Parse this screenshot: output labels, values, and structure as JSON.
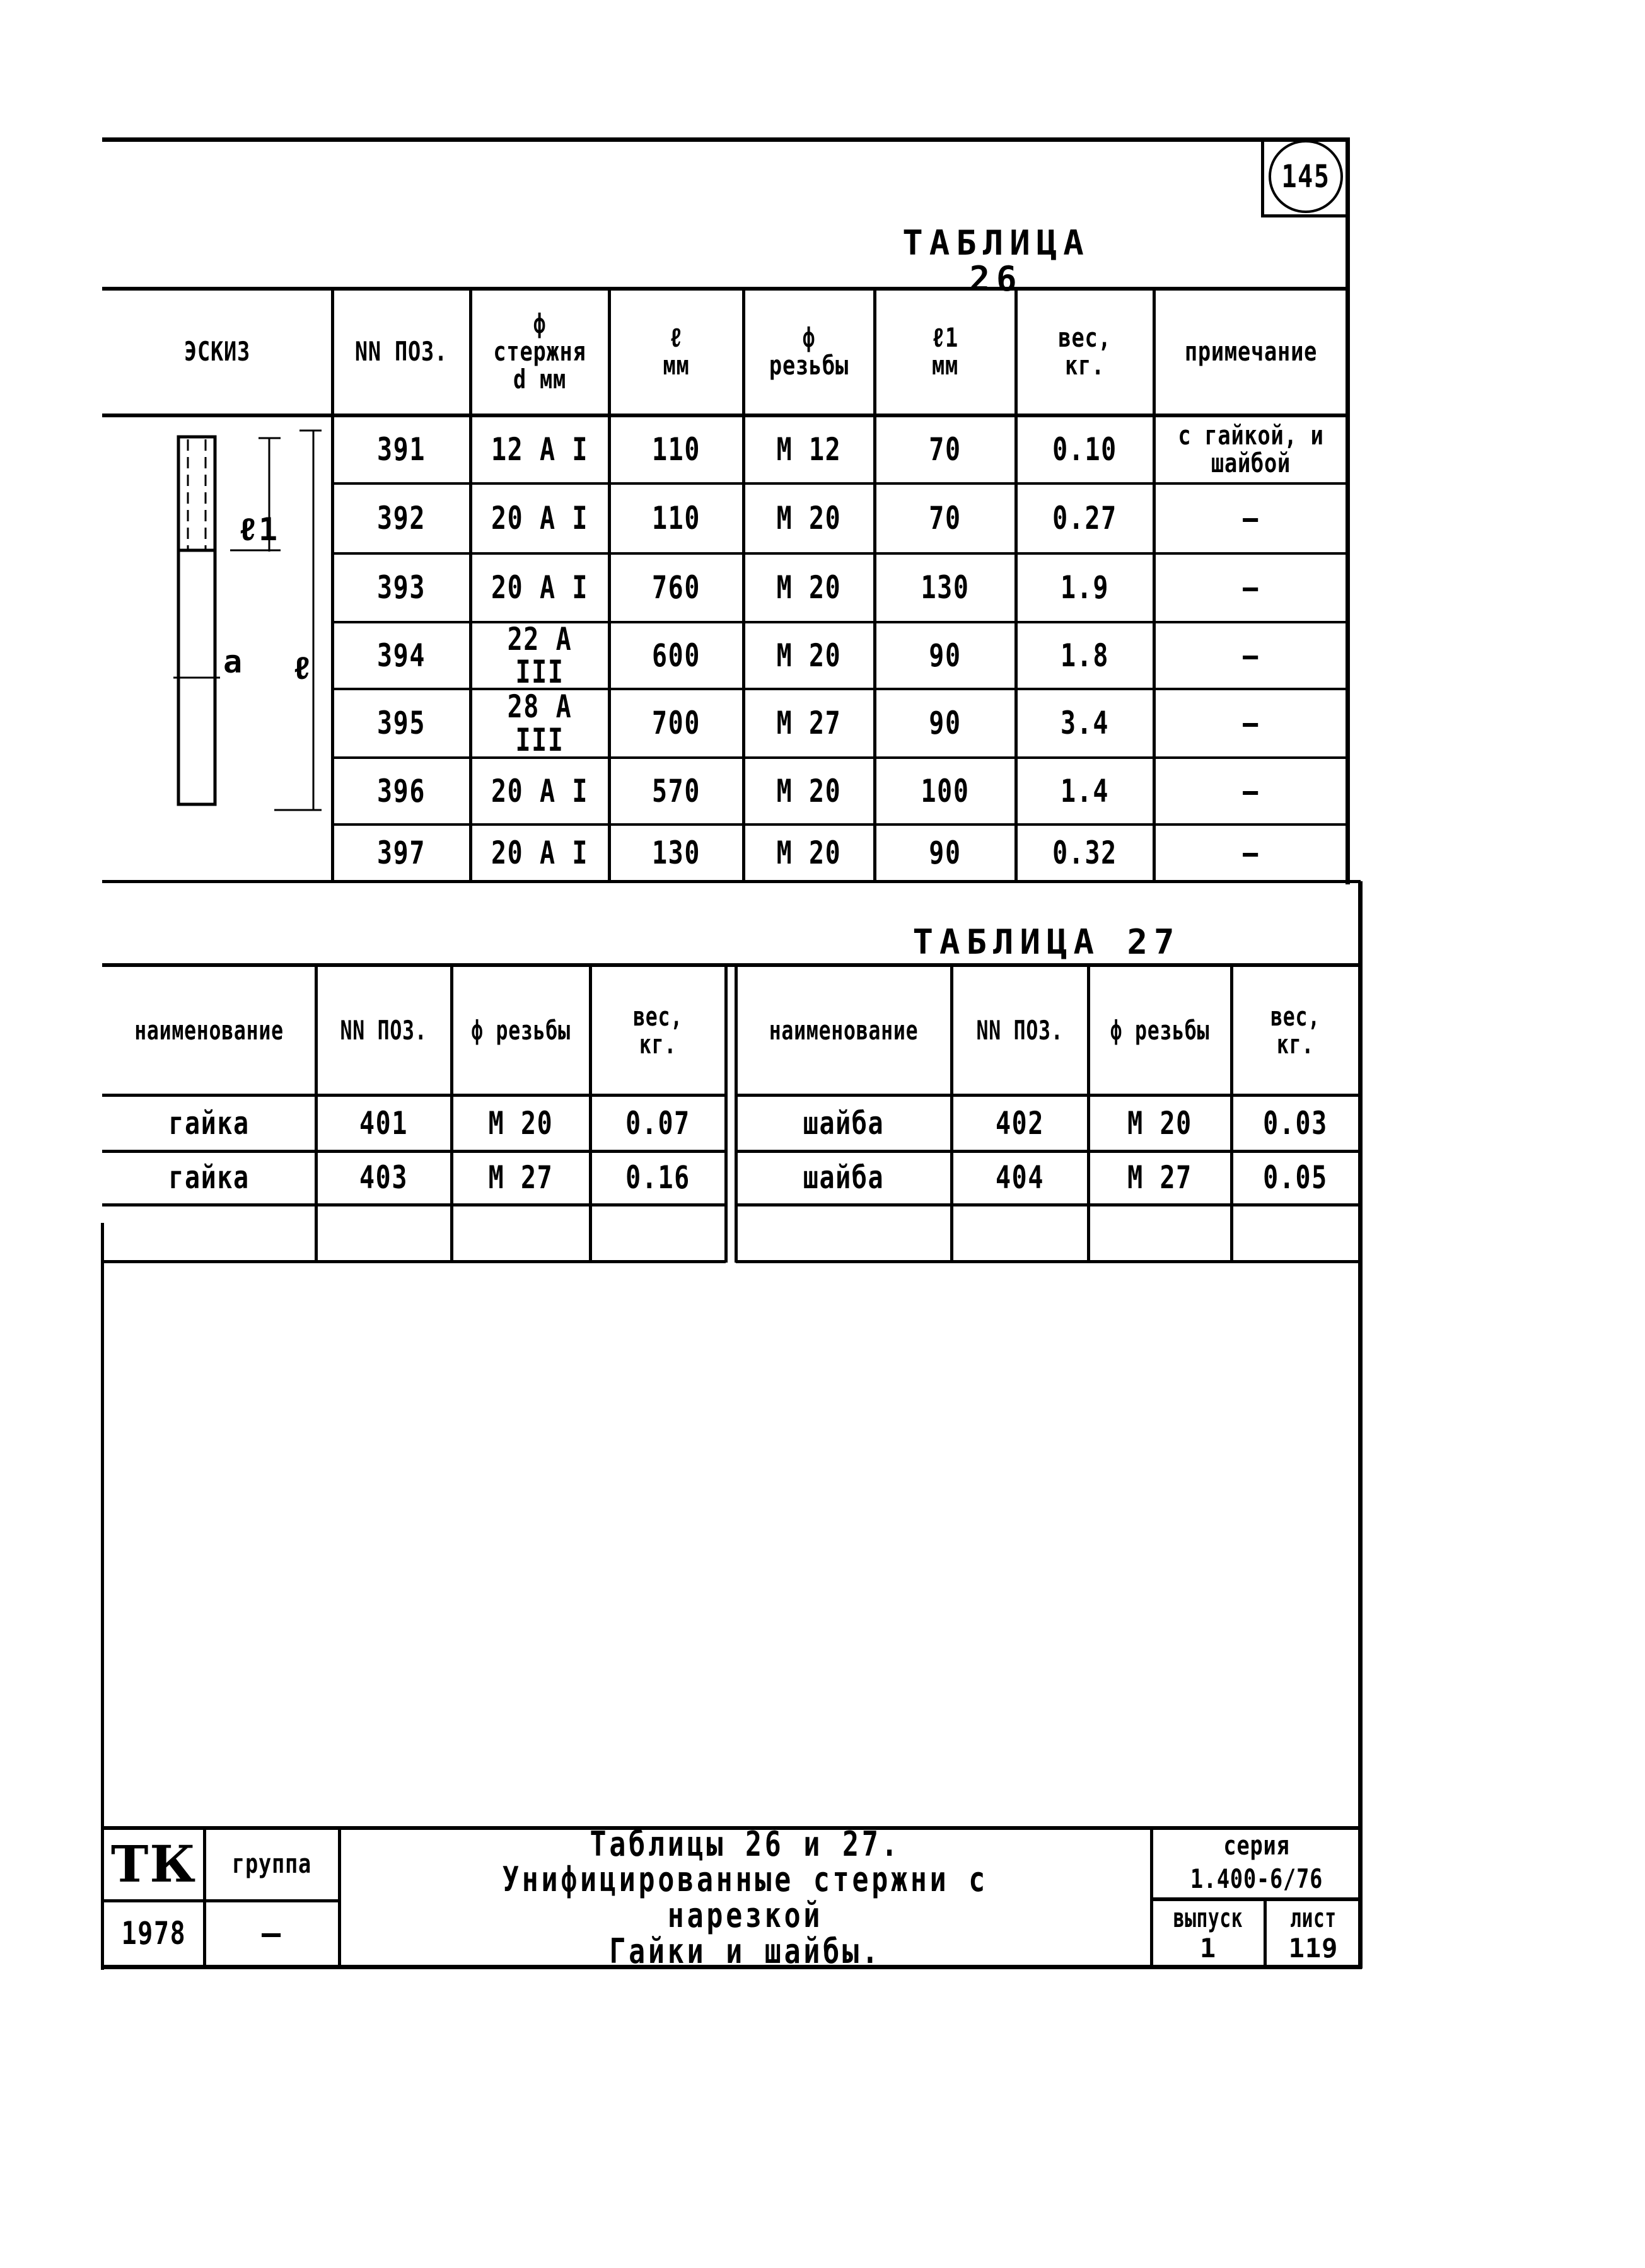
{
  "page_number": "145",
  "table26": {
    "title": "ТАБЛИЦА 26",
    "headers": [
      "ЭСКИЗ",
      "NN ПОЗ.",
      "ф стержня\nd мм",
      "ℓ\nмм",
      "ф резьбы",
      "ℓ1\nмм",
      "вес,\nкг.",
      "примечание"
    ],
    "sketch_labels": {
      "l1": "ℓ1",
      "l": "ℓ",
      "a": "a"
    },
    "rows": [
      [
        "391",
        "12 A I",
        "110",
        "М 12",
        "70",
        "0.10",
        "с гайкой, и\nшайбой"
      ],
      [
        "392",
        "20 A I",
        "110",
        "М 20",
        "70",
        "0.27",
        "—"
      ],
      [
        "393",
        "20 A I",
        "760",
        "М 20",
        "130",
        "1.9",
        "—"
      ],
      [
        "394",
        "22 A III",
        "600",
        "М 20",
        "90",
        "1.8",
        "—"
      ],
      [
        "395",
        "28 A III",
        "700",
        "М 27",
        "90",
        "3.4",
        "—"
      ],
      [
        "396",
        "20 A I",
        "570",
        "М 20",
        "100",
        "1.4",
        "—"
      ],
      [
        "397",
        "20 A I",
        "130",
        "М 20",
        "90",
        "0.32",
        "—"
      ]
    ]
  },
  "table27": {
    "title": "ТАБЛИЦА 27",
    "headers": [
      "наименование",
      "NN ПОЗ.",
      "ф резьбы",
      "вес, кг."
    ],
    "left_rows": [
      [
        "гайка",
        "401",
        "М 20",
        "0.07"
      ],
      [
        "гайка",
        "403",
        "М 27",
        "0.16"
      ],
      [
        "",
        "",
        "",
        ""
      ]
    ],
    "right_rows": [
      [
        "шайба",
        "402",
        "М 20",
        "0.03"
      ],
      [
        "шайба",
        "404",
        "М 27",
        "0.05"
      ],
      [
        "",
        "",
        "",
        ""
      ]
    ]
  },
  "title_block": {
    "org": "ТК",
    "group_label": "группа",
    "year": "1978",
    "group_value": "—",
    "title": "Таблицы 26 и 27.\nУнифицированные стержни с нарезкой\nГайки и шайбы.",
    "series_label": "серия",
    "series_value": "1.400-6/76",
    "issue_label": "выпуск",
    "issue_value": "1",
    "sheet_label": "лист",
    "sheet_value": "119"
  }
}
